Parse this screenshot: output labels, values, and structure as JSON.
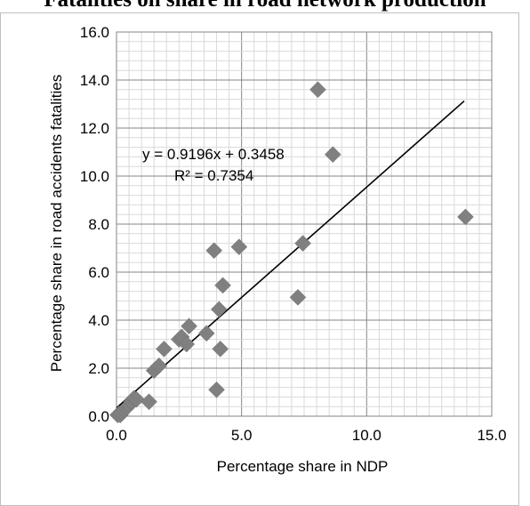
{
  "chart_data": {
    "type": "scatter",
    "title": "Fatalities on share in road network production",
    "xlabel": "Percentage share in NDP",
    "ylabel": "Percentage share in road accidents fatalities",
    "xlim": [
      0,
      15
    ],
    "ylim": [
      0,
      16
    ],
    "xticks": [
      "0.0",
      "5.0",
      "10.0",
      "15.0"
    ],
    "yticks": [
      "0.0",
      "2.0",
      "4.0",
      "6.0",
      "8.0",
      "10.0",
      "12.0",
      "14.0",
      "16.0"
    ],
    "grid": true,
    "marker_color": "#808080",
    "points": [
      {
        "x": 0.05,
        "y": 0.05
      },
      {
        "x": 0.1,
        "y": 0.1
      },
      {
        "x": 0.15,
        "y": 0.05
      },
      {
        "x": 0.2,
        "y": 0.15
      },
      {
        "x": 0.3,
        "y": 0.25
      },
      {
        "x": 0.4,
        "y": 0.35
      },
      {
        "x": 0.5,
        "y": 0.45
      },
      {
        "x": 0.6,
        "y": 0.6
      },
      {
        "x": 0.7,
        "y": 0.75
      },
      {
        "x": 0.8,
        "y": 0.7
      },
      {
        "x": 1.3,
        "y": 0.6
      },
      {
        "x": 1.5,
        "y": 1.9
      },
      {
        "x": 1.7,
        "y": 2.1
      },
      {
        "x": 1.9,
        "y": 2.8
      },
      {
        "x": 2.5,
        "y": 3.2
      },
      {
        "x": 2.6,
        "y": 3.3
      },
      {
        "x": 2.8,
        "y": 3.0
      },
      {
        "x": 2.9,
        "y": 3.75
      },
      {
        "x": 3.6,
        "y": 3.45
      },
      {
        "x": 3.9,
        "y": 6.9
      },
      {
        "x": 4.0,
        "y": 1.1
      },
      {
        "x": 4.1,
        "y": 4.45
      },
      {
        "x": 4.15,
        "y": 2.8
      },
      {
        "x": 4.25,
        "y": 5.45
      },
      {
        "x": 4.9,
        "y": 7.05
      },
      {
        "x": 7.25,
        "y": 4.95
      },
      {
        "x": 7.45,
        "y": 7.2
      },
      {
        "x": 8.05,
        "y": 13.6
      },
      {
        "x": 8.65,
        "y": 10.9
      },
      {
        "x": 13.95,
        "y": 8.3
      }
    ],
    "trendline": {
      "slope": 0.9196,
      "intercept": 0.3458,
      "x_range": [
        0,
        13.9
      ]
    },
    "equation_text": "y = 0.9196x + 0.3458",
    "r2_text": "R² = 0.7354"
  }
}
